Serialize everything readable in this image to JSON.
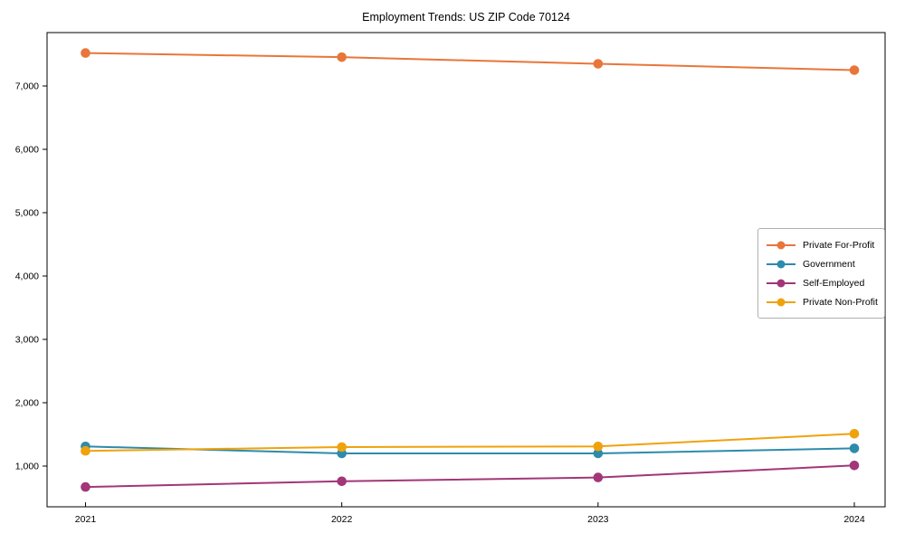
{
  "page": {
    "background": "#ffffff"
  },
  "chart_data": {
    "type": "line",
    "title": "Employment Trends: US ZIP Code 70124",
    "x": [
      2021,
      2022,
      2023,
      2024
    ],
    "x_tick_labels": [
      "2021",
      "2022",
      "2023",
      "2024"
    ],
    "series": [
      {
        "name": "Private For-Profit",
        "color": "#e8763a",
        "values": [
          7520,
          7455,
          7350,
          7250
        ]
      },
      {
        "name": "Government",
        "color": "#2d8bab",
        "values": [
          1310,
          1200,
          1200,
          1280
        ]
      },
      {
        "name": "Self-Employed",
        "color": "#a23678",
        "values": [
          670,
          760,
          820,
          1010
        ]
      },
      {
        "name": "Private Non-Profit",
        "color": "#f0a20c",
        "values": [
          1240,
          1300,
          1310,
          1510
        ]
      }
    ],
    "yticks": [
      1000,
      2000,
      3000,
      4000,
      5000,
      6000,
      7000
    ],
    "ytick_labels": [
      "1,000",
      "2,000",
      "3,000",
      "4,000",
      "5,000",
      "6,000",
      "7,000"
    ],
    "xlim": [
      2020.85,
      2024.12
    ],
    "ylim": [
      357,
      7843
    ],
    "xlabel": "",
    "ylabel": "",
    "grid": false,
    "legend_position": "right"
  }
}
